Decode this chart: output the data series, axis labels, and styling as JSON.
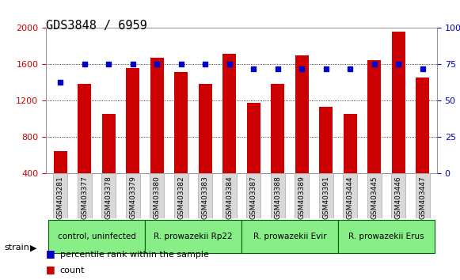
{
  "title": "GDS3848 / 6959",
  "samples": [
    "GSM403281",
    "GSM403377",
    "GSM403378",
    "GSM403379",
    "GSM403380",
    "GSM403382",
    "GSM403383",
    "GSM403384",
    "GSM403387",
    "GSM403388",
    "GSM403389",
    "GSM403391",
    "GSM403444",
    "GSM403445",
    "GSM403446",
    "GSM403447"
  ],
  "counts": [
    650,
    1390,
    1060,
    1560,
    1670,
    1520,
    1390,
    1720,
    1180,
    1390,
    1700,
    1130,
    1060,
    1650,
    1960,
    1460
  ],
  "percentiles": [
    63,
    75,
    75,
    75,
    75,
    75,
    75,
    75,
    72,
    72,
    72,
    72,
    72,
    75,
    75,
    72
  ],
  "ylim_left": [
    400,
    2000
  ],
  "ylim_right": [
    0,
    100
  ],
  "yticks_left": [
    400,
    800,
    1200,
    1600,
    2000
  ],
  "yticks_right": [
    0,
    25,
    50,
    75,
    100
  ],
  "bar_color": "#cc0000",
  "dot_color": "#0000cc",
  "groups": [
    {
      "label": "control, uninfected",
      "start": 0,
      "end": 4
    },
    {
      "label": "R. prowazekii Rp22",
      "start": 4,
      "end": 8
    },
    {
      "label": "R. prowazekii Evir",
      "start": 8,
      "end": 12
    },
    {
      "label": "R. prowazekii Erus",
      "start": 12,
      "end": 16
    }
  ],
  "group_color": "#88ee88",
  "group_border_color": "#006600",
  "tick_label_color_left": "#cc0000",
  "tick_label_color_right": "#0000cc",
  "bg_color": "#ffffff",
  "plot_bg_color": "#ffffff",
  "grid_color": "#000000",
  "legend_count_color": "#cc0000",
  "legend_pct_color": "#0000cc"
}
